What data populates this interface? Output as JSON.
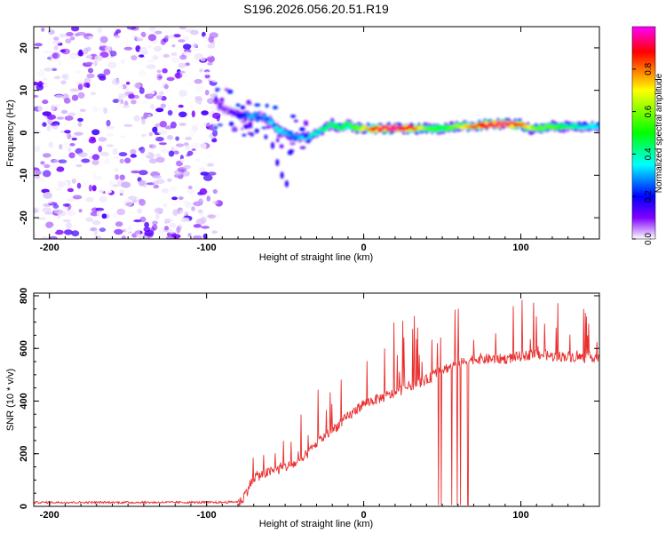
{
  "chart_data": [
    {
      "type": "heatmap",
      "title": "S196.2026.056.20.51.R19",
      "xlabel": "Height of straight line (km)",
      "ylabel": "Frequency (Hz)",
      "xlim": [
        -210,
        150
      ],
      "ylim": [
        -25,
        25
      ],
      "xticks": [
        -200,
        -100,
        0,
        100
      ],
      "xtick_labels": [
        "-200",
        "-100",
        "0",
        "100"
      ],
      "yticks": [
        -20,
        -10,
        0,
        10,
        20
      ],
      "ytick_labels": [
        "-20",
        "-10",
        "0",
        "10",
        "20"
      ],
      "colorbar": {
        "label": "Normalized spectral amplitude",
        "range": [
          0,
          1
        ],
        "ticks": [
          0.0,
          0.2,
          0.4,
          0.6,
          0.8
        ],
        "tick_labels": [
          "0.0",
          "0.2",
          "0.4",
          "0.6",
          "0.8"
        ],
        "colormap": [
          "#ff00ff",
          "#ff0000",
          "#ffff00",
          "#00ff00",
          "#00ffff",
          "#0000ff",
          "#8000ff",
          "#ffffff"
        ]
      },
      "noise_region": {
        "x": [
          -210,
          -92
        ],
        "freq": [
          -25,
          25
        ],
        "amplitude": [
          0.0,
          0.25
        ]
      },
      "ridge": {
        "x": [
          -92,
          -85,
          -78,
          -72,
          -66,
          -60,
          -55,
          -50,
          -45,
          -40,
          -35,
          -30,
          -25,
          -20,
          -15,
          -10,
          -5,
          0,
          5,
          10,
          20,
          30,
          40,
          50,
          60,
          70,
          80,
          90,
          100,
          105,
          110,
          120,
          130,
          140,
          150
        ],
        "freq": [
          6,
          5,
          4,
          4,
          4,
          3,
          1,
          0,
          -1,
          -1,
          -1,
          0,
          1,
          2,
          1,
          2,
          1,
          1,
          1,
          1,
          1,
          1,
          1,
          1,
          1.5,
          1.5,
          2,
          2,
          2,
          1,
          1,
          1.5,
          1.5,
          1.5,
          1.5
        ],
        "amplitude": [
          0.15,
          0.2,
          0.3,
          0.4,
          0.35,
          0.4,
          0.45,
          0.4,
          0.35,
          0.4,
          0.45,
          0.45,
          0.5,
          0.5,
          0.55,
          0.55,
          0.6,
          0.7,
          0.8,
          0.9,
          0.95,
          0.85,
          0.6,
          0.55,
          0.65,
          0.8,
          0.9,
          0.95,
          0.8,
          0.7,
          0.6,
          0.6,
          0.5,
          0.45,
          0.4
        ]
      },
      "branch": {
        "x": [
          -58,
          -55,
          -52,
          -49
        ],
        "freq": [
          -3,
          -7,
          -10,
          -12
        ]
      }
    },
    {
      "type": "line",
      "xlabel": "Height of straight line (km)",
      "ylabel": "SNR (10 * v/v)",
      "xlim": [
        -210,
        150
      ],
      "ylim": [
        0,
        810
      ],
      "xticks": [
        -200,
        -100,
        0,
        100
      ],
      "xtick_labels": [
        "-200",
        "-100",
        "0",
        "100"
      ],
      "yticks": [
        0,
        200,
        400,
        600,
        800
      ],
      "ytick_labels": [
        "0",
        "200",
        "400",
        "600",
        "800"
      ],
      "color": "#e8302f",
      "series": [
        {
          "name": "SNR",
          "x": [
            -210,
            -150,
            -90,
            -78,
            -70,
            -60,
            -50,
            -40,
            -30,
            -20,
            -10,
            0,
            10,
            20,
            30,
            40,
            50,
            60,
            70,
            80,
            90,
            100,
            110,
            120,
            130,
            140,
            150
          ],
          "values": [
            15,
            15,
            15,
            18,
            110,
            130,
            150,
            170,
            240,
            290,
            340,
            390,
            410,
            430,
            460,
            480,
            520,
            540,
            560,
            560,
            560,
            570,
            580,
            570,
            570,
            565,
            570
          ],
          "spike_max": [
            20,
            20,
            20,
            30,
            210,
            200,
            260,
            360,
            460,
            510,
            560,
            620,
            680,
            700,
            740,
            760,
            780,
            790,
            800,
            790,
            810,
            790,
            780,
            780,
            770,
            770,
            790
          ]
        }
      ]
    }
  ]
}
